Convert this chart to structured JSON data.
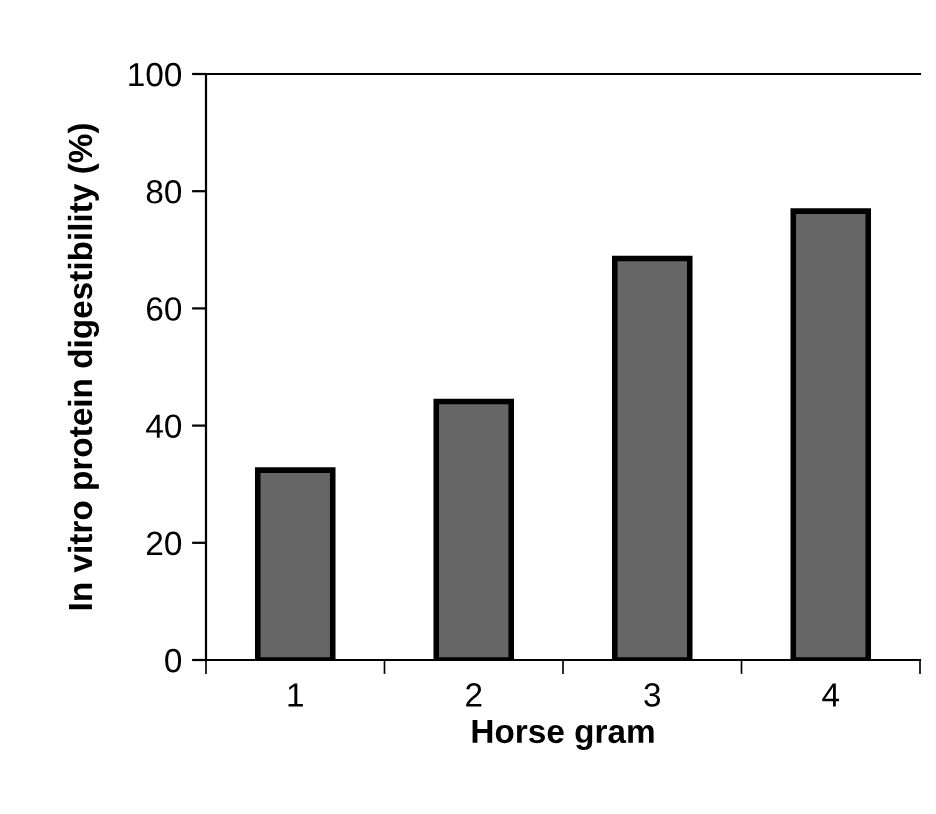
{
  "chart_data": {
    "type": "bar",
    "xlabel": "Horse gram",
    "ylabel": "In vitro protein digestibility (%)",
    "categories": [
      "1",
      "2",
      "3",
      "4"
    ],
    "values": [
      32.4,
      44.1,
      68.5,
      76.6
    ],
    "color": "#666666",
    "ylim": [
      0,
      100
    ],
    "yticks": [
      0,
      20,
      40,
      60,
      80,
      100
    ],
    "grid": false
  }
}
